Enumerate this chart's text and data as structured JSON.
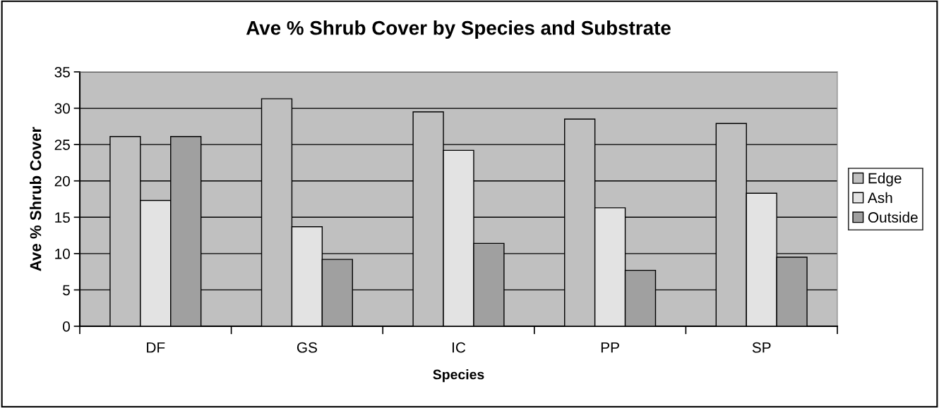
{
  "chart_data": {
    "type": "bar",
    "title": "Ave % Shrub Cover by Species and Substrate",
    "xlabel": "Species",
    "ylabel": "Ave % Shrub Cover",
    "categories": [
      "DF",
      "GS",
      "IC",
      "PP",
      "SP"
    ],
    "series": [
      {
        "name": "Edge",
        "color": "#c0c0c0",
        "values": [
          26.1,
          31.3,
          29.5,
          28.5,
          27.9
        ]
      },
      {
        "name": "Ash",
        "color": "#e3e3e3",
        "values": [
          17.3,
          13.7,
          24.2,
          16.3,
          18.3
        ]
      },
      {
        "name": "Outside",
        "color": "#a0a0a0",
        "values": [
          26.1,
          9.2,
          11.4,
          7.7,
          9.5
        ]
      }
    ],
    "ylim": [
      0,
      35
    ],
    "yticks": [
      0,
      5,
      10,
      15,
      20,
      25,
      30,
      35
    ],
    "grid": "y",
    "legend": "right"
  }
}
